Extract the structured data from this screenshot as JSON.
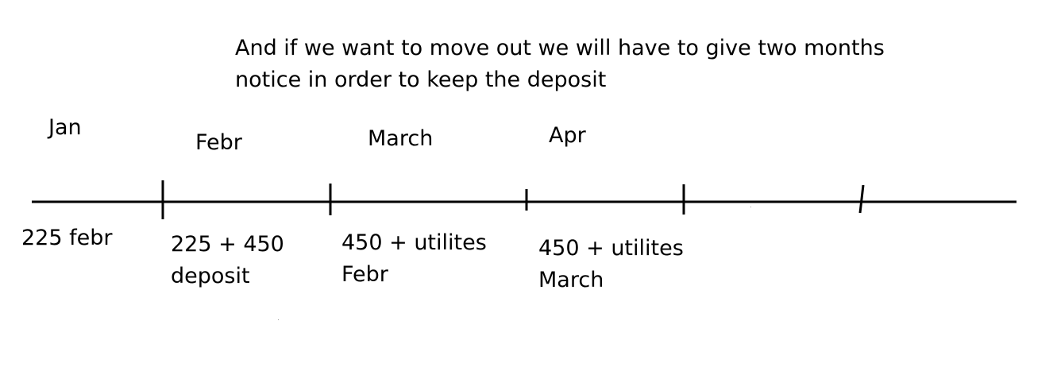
{
  "note": {
    "line1": "And if we want to move out we will have to give two months",
    "line2": "notice in order to keep the deposit"
  },
  "months": {
    "jan": "Jan",
    "feb": "Febr",
    "mar": "March",
    "apr": "Apr"
  },
  "payments": {
    "jan": "225 febr",
    "feb": {
      "line1": "225 + 450",
      "line2": "deposit"
    },
    "mar": {
      "line1": "450 + utilites",
      "line2": "Febr"
    },
    "apr": {
      "line1": "450 + utilites",
      "line2": "March"
    }
  },
  "colors": {
    "ink": "#000000",
    "background": "#ffffff"
  }
}
